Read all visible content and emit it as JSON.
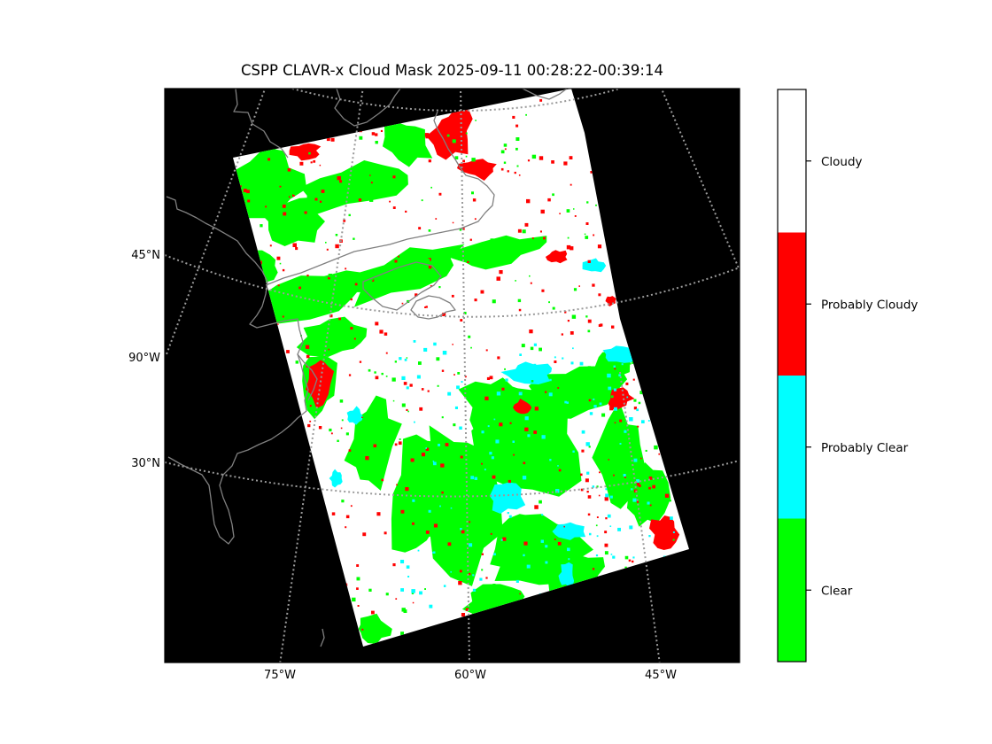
{
  "title": "CSPP CLAVR-x Cloud Mask 2025-09-11 00:28:22-00:39:14",
  "map": {
    "background_color": "#000000",
    "coastline_color": "#808080",
    "gridline_color": "#9a9a9a",
    "gridline_style": "dotted",
    "lon_labels": [
      "75°W",
      "60°W",
      "45°W"
    ],
    "lat_labels": [
      "45°N",
      "90°W",
      "30°N"
    ]
  },
  "colorbar": {
    "categories": [
      {
        "label": "Cloudy",
        "color": "#ffffff"
      },
      {
        "label": "Probably Cloudy",
        "color": "#ff0000"
      },
      {
        "label": "Probably Clear",
        "color": "#00ffff"
      },
      {
        "label": "Clear",
        "color": "#00ff00"
      }
    ]
  }
}
